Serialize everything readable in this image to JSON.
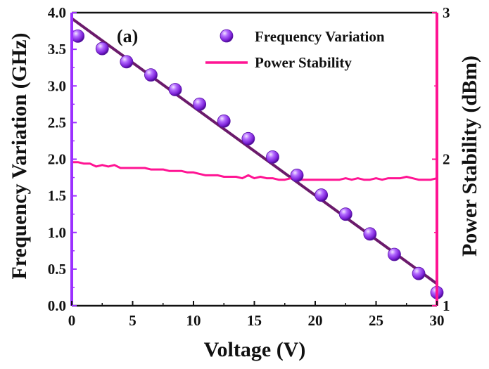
{
  "chart_data": {
    "type": "scatter",
    "panel_label": "(a)",
    "xlabel": "Voltage (V)",
    "ylabel_left": "Frequency Variation (GHz)",
    "ylabel_right": "Power Stability (dBm)",
    "xlim": [
      0,
      30
    ],
    "ylim_left": [
      0,
      4.0
    ],
    "ylim_right": [
      1,
      3
    ],
    "x_ticks": [
      "0",
      "5",
      "10",
      "15",
      "20",
      "25",
      "30"
    ],
    "y_left_ticks": [
      "0.0",
      "0.5",
      "1.0",
      "1.5",
      "2.0",
      "2.5",
      "3.0",
      "3.5",
      "4.0"
    ],
    "y_right_ticks": [
      "1",
      "2",
      "3"
    ],
    "grid": false,
    "legend_position": "top-right",
    "legend": [
      "Frequency Variation",
      "Power Stability"
    ],
    "colors": {
      "frequency_marker": "#8a2be2",
      "fit_line": "#6b1a6b",
      "power_line": "#ff1493",
      "left_axis": "#9b30ff",
      "right_axis": "#ff1493"
    },
    "series": [
      {
        "name": "Frequency Variation",
        "axis": "left",
        "style": "markers",
        "x": [
          0.5,
          2.5,
          4.5,
          6.5,
          8.5,
          10.5,
          12.5,
          14.5,
          16.5,
          18.5,
          20.5,
          22.5,
          24.5,
          26.5,
          28.5,
          30
        ],
        "y": [
          3.68,
          3.51,
          3.33,
          3.15,
          2.95,
          2.75,
          2.52,
          2.28,
          2.03,
          1.78,
          1.51,
          1.25,
          0.98,
          0.7,
          0.44,
          0.18
        ]
      },
      {
        "name": "Linear Fit",
        "axis": "left",
        "style": "line",
        "x": [
          0,
          30
        ],
        "y": [
          3.92,
          0.3
        ]
      },
      {
        "name": "Power Stability",
        "axis": "right",
        "style": "line",
        "x": [
          0,
          0.5,
          1,
          1.5,
          2,
          2.5,
          3,
          3.5,
          4,
          4.5,
          5,
          5.5,
          6,
          6.5,
          7,
          7.5,
          8,
          8.5,
          9,
          9.5,
          10,
          10.5,
          11,
          11.5,
          12,
          12.5,
          13,
          13.5,
          14,
          14.5,
          15,
          15.5,
          16,
          16.5,
          17,
          17.5,
          18,
          18.5,
          19,
          19.5,
          20,
          20.5,
          21,
          21.5,
          22,
          22.5,
          23,
          23.5,
          24,
          24.5,
          25,
          25.5,
          26,
          26.5,
          27,
          27.5,
          28,
          28.5,
          29,
          29.5,
          30
        ],
        "y": [
          1.98,
          1.98,
          1.97,
          1.97,
          1.95,
          1.96,
          1.95,
          1.96,
          1.94,
          1.94,
          1.94,
          1.94,
          1.94,
          1.93,
          1.93,
          1.93,
          1.92,
          1.92,
          1.92,
          1.91,
          1.91,
          1.9,
          1.89,
          1.89,
          1.89,
          1.88,
          1.88,
          1.88,
          1.87,
          1.89,
          1.87,
          1.88,
          1.87,
          1.87,
          1.86,
          1.86,
          1.87,
          1.86,
          1.86,
          1.86,
          1.86,
          1.86,
          1.86,
          1.86,
          1.86,
          1.87,
          1.86,
          1.87,
          1.86,
          1.86,
          1.87,
          1.86,
          1.87,
          1.87,
          1.87,
          1.88,
          1.87,
          1.86,
          1.86,
          1.86,
          1.87
        ]
      }
    ]
  }
}
